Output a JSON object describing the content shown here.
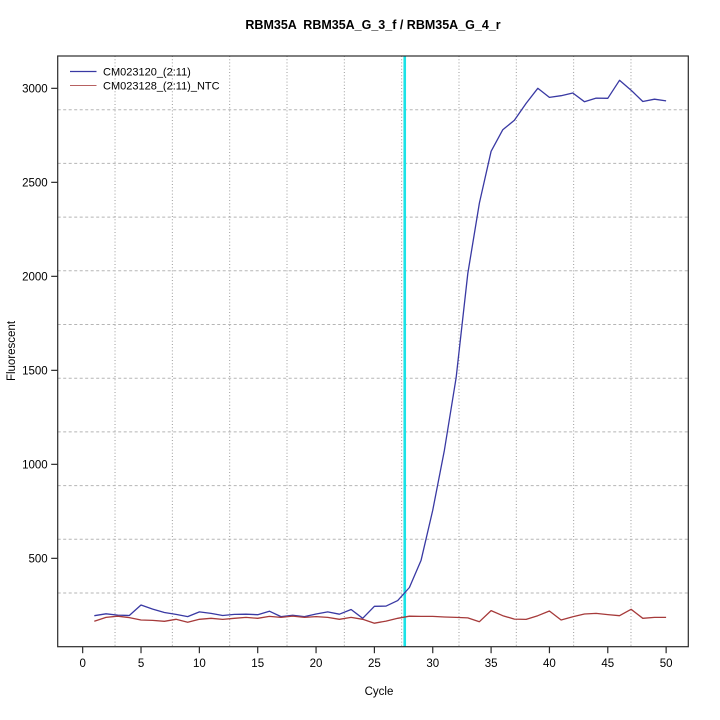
{
  "title": "RBM35A  RBM35A_G_3_f / RBM35A_G_4_r",
  "chart_data": {
    "type": "line",
    "title": "RBM35A  RBM35A_G_3_f / RBM35A_G_4_r",
    "xlabel": "Cycle",
    "ylabel": "Fluorescent",
    "x_ticks": [
      0,
      5,
      10,
      15,
      20,
      25,
      30,
      35,
      40,
      45,
      50
    ],
    "y_ticks": [
      500,
      1000,
      1500,
      2000,
      2500,
      3000
    ],
    "xlim": [
      -2.14,
      51.9
    ],
    "ylim": [
      30,
      3172
    ],
    "x_first": 1,
    "x_step": 1,
    "series": [
      {
        "name": "CM023120_(2:11)",
        "color": "#3939a3",
        "values": [
          195,
          205,
          198,
          196,
          252,
          230,
          212,
          202,
          190,
          215,
          207,
          196,
          202,
          203,
          200,
          219,
          190,
          197,
          190,
          204,
          215,
          203,
          228,
          181,
          245,
          246,
          275,
          345,
          490,
          755,
          1075,
          1460,
          2015,
          2390,
          2665,
          2780,
          2830,
          2920,
          3000,
          2952,
          2961,
          2975,
          2929,
          2948,
          2947,
          3043,
          2990,
          2930,
          2942,
          2933
        ]
      },
      {
        "name": "CM023128_(2:11)_NTC",
        "color": "#a63a3a",
        "values": [
          165,
          186,
          192,
          185,
          172,
          170,
          165,
          176,
          160,
          176,
          181,
          175,
          181,
          186,
          181,
          191,
          186,
          193,
          186,
          190,
          186,
          176,
          186,
          176,
          155,
          166,
          181,
          192,
          191,
          191,
          188,
          186,
          183,
          163,
          222,
          195,
          177,
          175,
          195,
          220,
          172,
          189,
          204,
          207,
          201,
          195,
          229,
          181,
          186,
          186
        ]
      }
    ],
    "threshold_line": {
      "x": 27.6,
      "color": "#1ae2e6"
    },
    "grid": {
      "nx": 11,
      "ny": 11,
      "h_color": "#b5b5b5",
      "v_color": "#9c9c9c"
    },
    "legend_position": "top-left",
    "axis_color": "#2b2b2b"
  }
}
